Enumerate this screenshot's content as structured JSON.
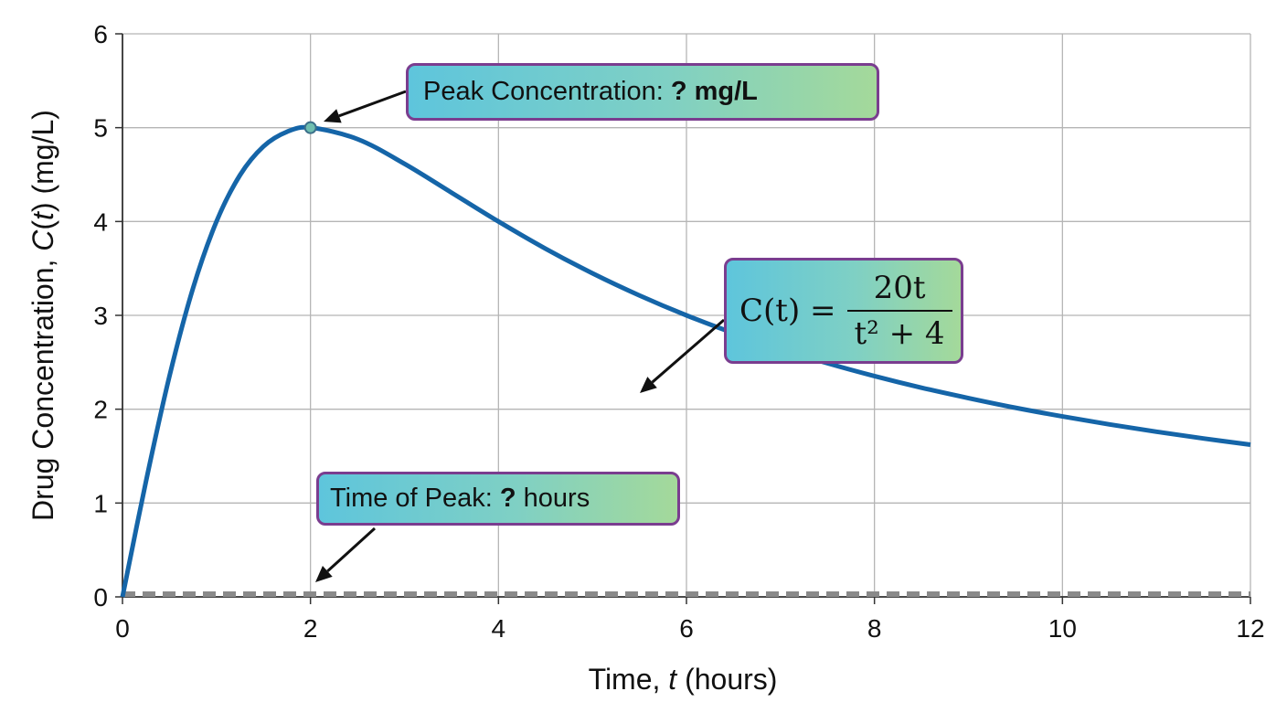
{
  "chart_data": {
    "type": "line",
    "xlabel": {
      "prefix": "Time, ",
      "var": "t",
      "suffix": " (hours)"
    },
    "ylabel": {
      "prefix": "Drug Concentration, ",
      "func": "C",
      "open": "(",
      "var": "t",
      "close": ")",
      "suffix": " (mg/L)"
    },
    "xlim": [
      0,
      12
    ],
    "ylim": [
      0,
      6
    ],
    "x_ticks": [
      "0",
      "2",
      "4",
      "6",
      "8",
      "10",
      "12"
    ],
    "y_ticks": [
      "0",
      "1",
      "2",
      "3",
      "4",
      "5",
      "6"
    ],
    "grid": true,
    "series": [
      {
        "formula": "C(t) = 20t / (t^2 + 4)",
        "color": "#1565a8",
        "x": [
          0,
          0.25,
          0.5,
          0.75,
          1,
          1.25,
          1.5,
          1.75,
          2,
          2.5,
          3,
          3.5,
          4,
          4.5,
          5,
          5.5,
          6,
          6.5,
          7,
          7.5,
          8,
          8.5,
          9,
          9.5,
          10,
          10.5,
          11,
          11.5,
          12
        ],
        "y": [
          0,
          1.231,
          2.353,
          3.288,
          4.0,
          4.494,
          4.8,
          4.956,
          5.0,
          4.878,
          4.615,
          4.308,
          4.0,
          3.711,
          3.448,
          3.212,
          3.0,
          2.811,
          2.642,
          2.49,
          2.353,
          2.229,
          2.118,
          2.015,
          1.923,
          1.838,
          1.76,
          1.688,
          1.622
        ]
      }
    ],
    "peak_point": {
      "x": 2,
      "y": 5,
      "color": "#6fbfb0"
    },
    "baseline": {
      "y": 0,
      "style": "dashed",
      "color": "#8a8a8a"
    }
  },
  "callouts": {
    "peak": {
      "text": "Peak Concentration: ",
      "value": "? mg/L"
    },
    "time": {
      "text": "Time of Peak: ",
      "value": "?",
      "unit": " hours"
    },
    "formula": {
      "lhs": "C(t) = ",
      "numerator": "20t",
      "denominator": "t² + 4"
    }
  },
  "colors": {
    "callout_border": "#7a3d8f",
    "callout_left": "#5ec5dc",
    "callout_right": "#a4d99a",
    "grid": "#b5b5b5"
  }
}
